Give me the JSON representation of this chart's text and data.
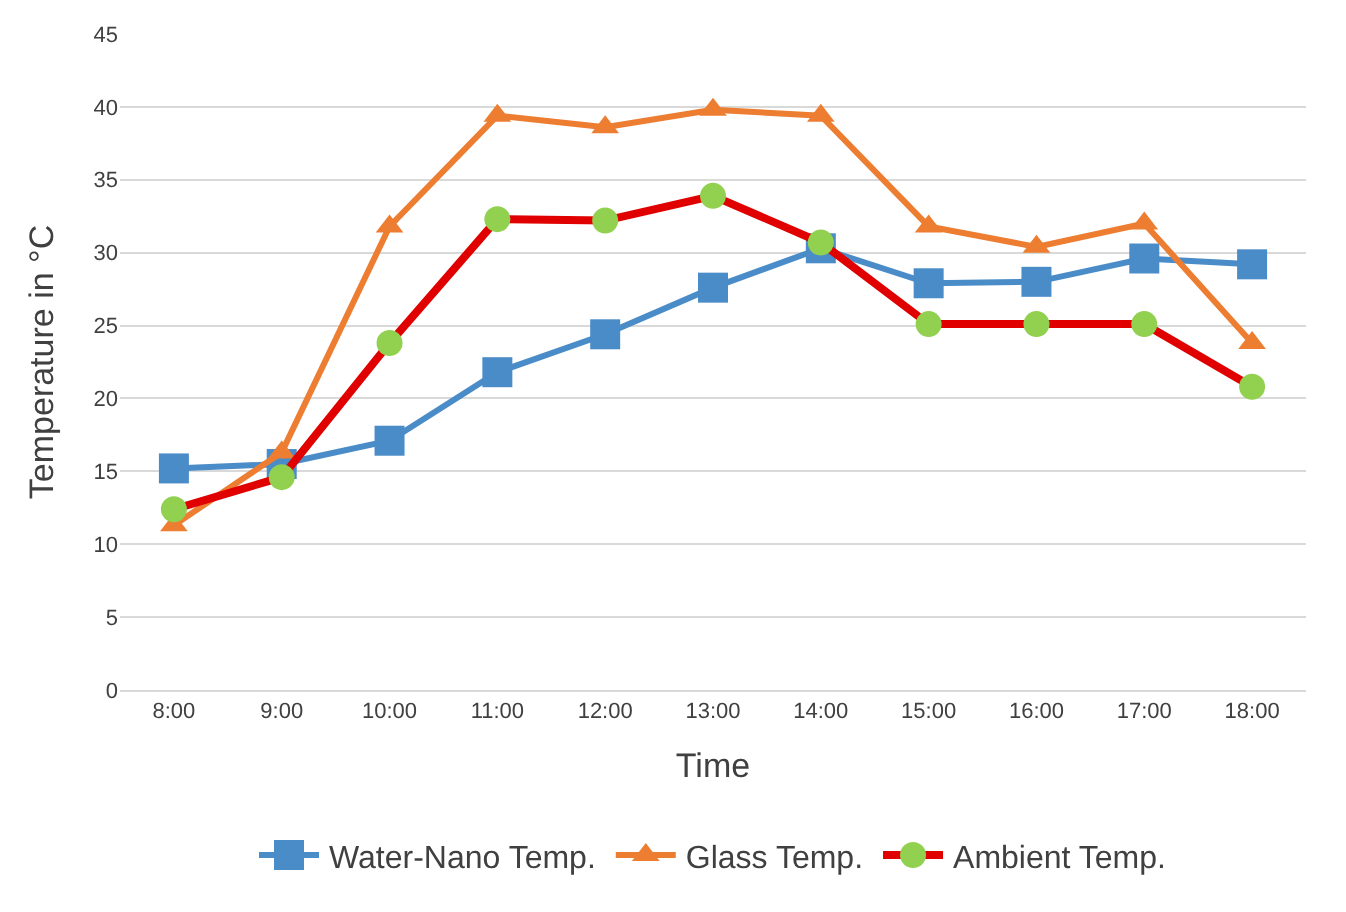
{
  "chart_data": {
    "type": "line",
    "xlabel": "Time",
    "ylabel": "Temperature in °C",
    "categories": [
      "8:00",
      "9:00",
      "10:00",
      "11:00",
      "12:00",
      "13:00",
      "14:00",
      "15:00",
      "16:00",
      "17:00",
      "18:00"
    ],
    "series": [
      {
        "name": "Water-Nano Temp.",
        "color": "#4a8cc8",
        "marker": "square",
        "values": [
          15.2,
          15.5,
          17.1,
          21.8,
          24.4,
          27.6,
          30.3,
          27.9,
          28.0,
          29.6,
          29.2
        ]
      },
      {
        "name": "Glass Temp.",
        "color": "#ed7d31",
        "marker": "triangle",
        "values": [
          11.3,
          16.3,
          31.8,
          39.4,
          38.6,
          39.8,
          39.4,
          31.8,
          30.4,
          32.0,
          23.8
        ]
      },
      {
        "name": "Ambient Temp.",
        "color": "#e00000",
        "marker": "circle",
        "colors": [
          "#92d050",
          "#92d050",
          "#92d050",
          "#92d050",
          "#92d050",
          "#92d050",
          "#92d050",
          "#92d050",
          "#92d050",
          "#92d050",
          "#92d050"
        ],
        "values": [
          12.4,
          14.6,
          23.8,
          32.3,
          32.2,
          33.9,
          30.7,
          25.1,
          25.1,
          25.1,
          20.8
        ]
      }
    ],
    "ylim": [
      0,
      45
    ],
    "yticks": [
      0,
      5,
      10,
      15,
      20,
      25,
      30,
      35,
      40,
      45
    ],
    "grid": "y",
    "legend": "bottom",
    "line_style": "solid"
  }
}
